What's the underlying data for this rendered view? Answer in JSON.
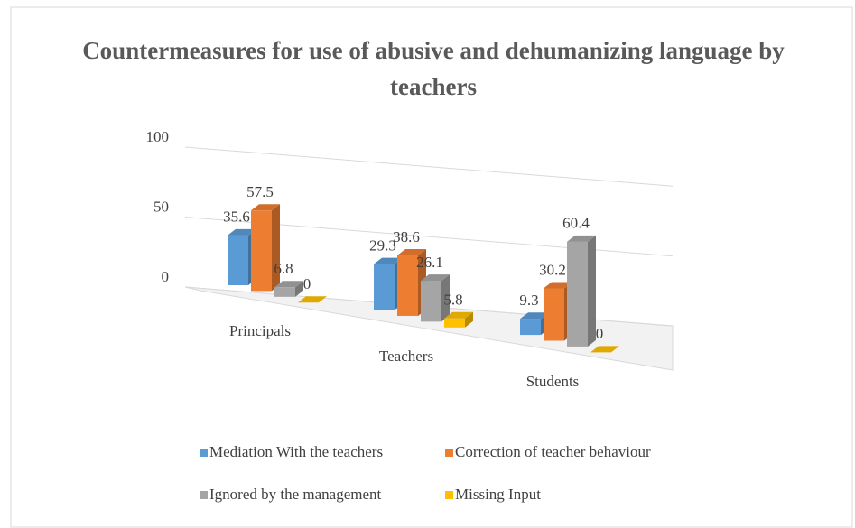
{
  "chart_data": {
    "type": "bar3d",
    "title": "Countermeasures for use of abusive and dehumanizing language by teachers",
    "categories": [
      "Principals",
      "Teachers",
      "Students"
    ],
    "series": [
      {
        "name": "Mediation With the teachers",
        "color": "#5b9bd5",
        "values": [
          35.6,
          29.3,
          9.3
        ]
      },
      {
        "name": "Correction of teacher behaviour",
        "color": "#ed7d31",
        "values": [
          57.5,
          38.6,
          30.2
        ]
      },
      {
        "name": "Ignored by the management",
        "color": "#a5a5a5",
        "values": [
          6.8,
          26.1,
          60.4
        ]
      },
      {
        "name": "Missing Input",
        "color": "#ffc000",
        "values": [
          0,
          5.8,
          0
        ]
      }
    ],
    "ylim": [
      0,
      100
    ],
    "yticks": [
      0,
      50,
      100
    ],
    "grid": true,
    "legend": "bottom"
  }
}
